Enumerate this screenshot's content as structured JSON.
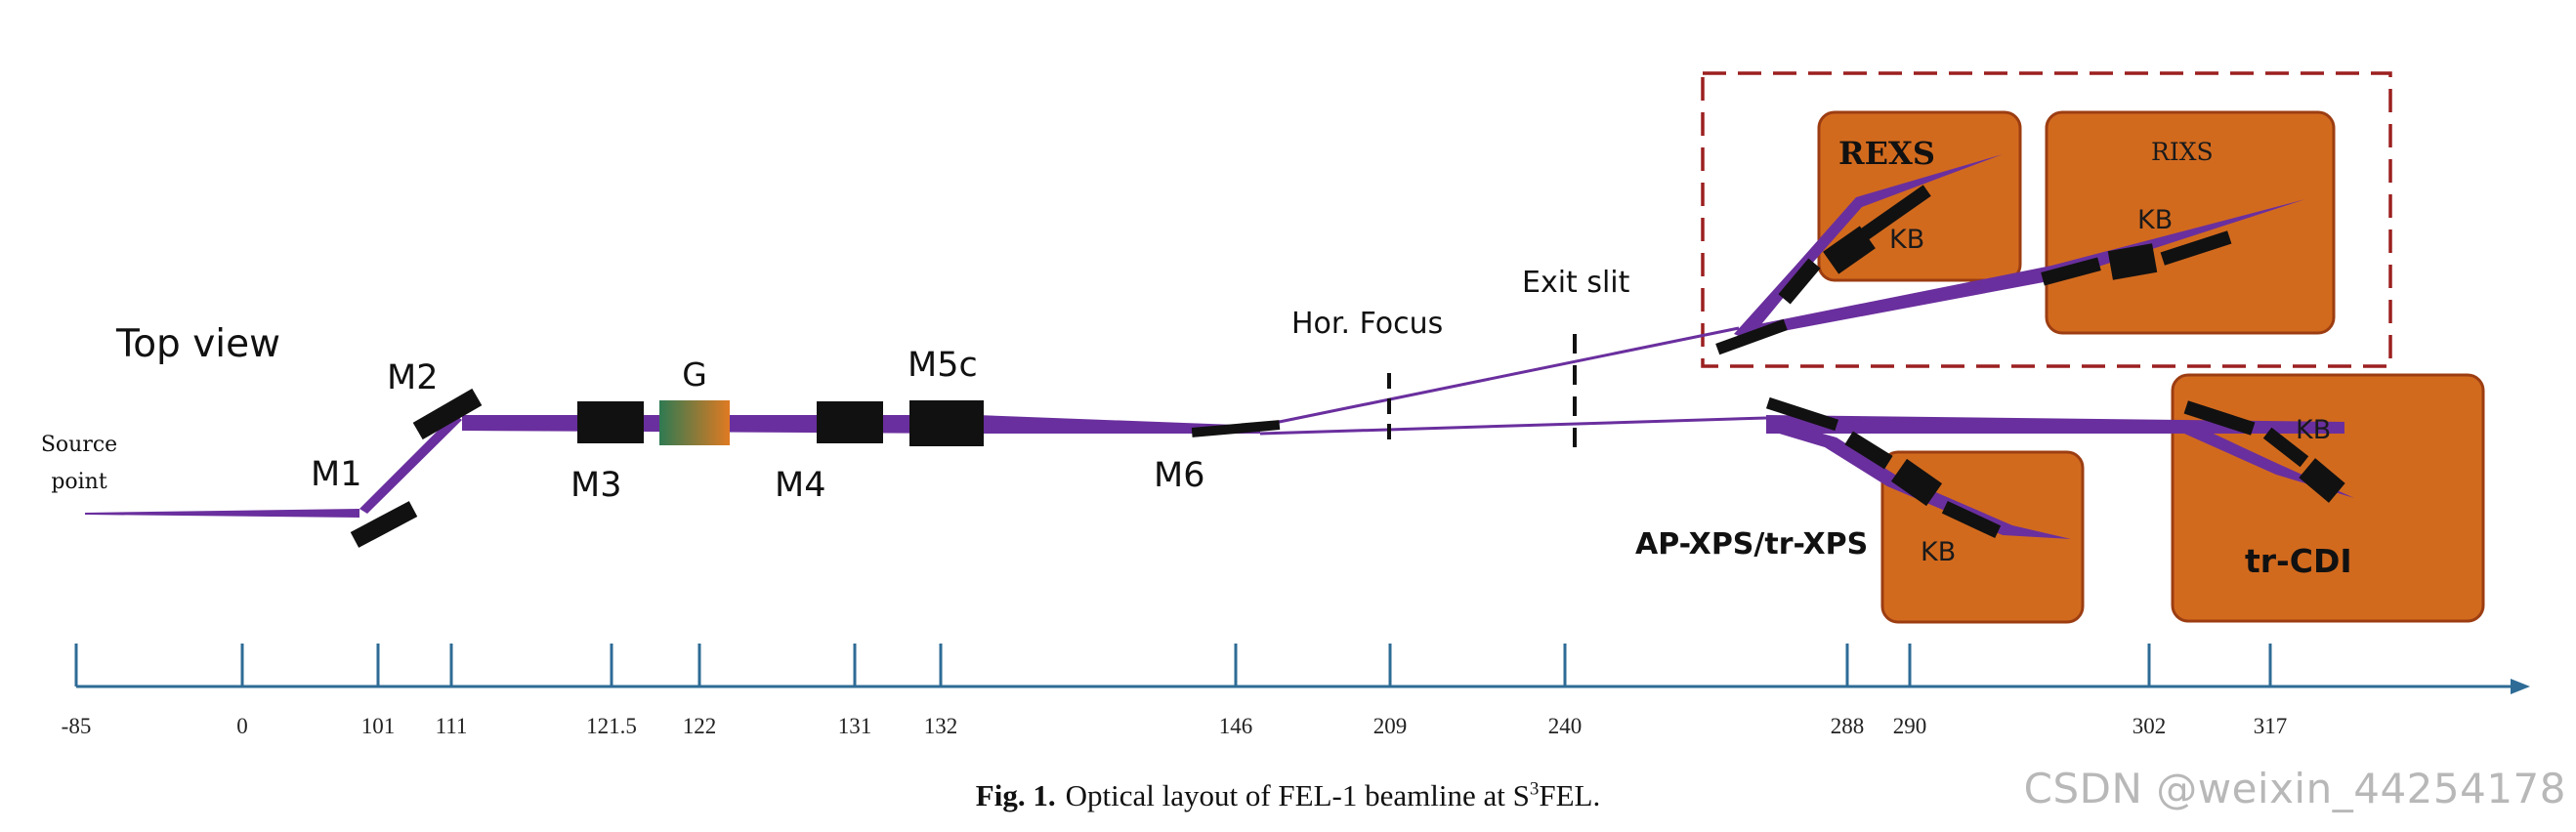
{
  "view_label": "Top view",
  "source_label": [
    "Source",
    "point"
  ],
  "components": {
    "m1": "M1",
    "m2": "M2",
    "m3": "M3",
    "g": "G",
    "m4": "M4",
    "m5c": "M5c",
    "m6": "M6",
    "hor_focus": "Hor. Focus",
    "exit_slit": "Exit slit"
  },
  "stations": {
    "rexs": "REXS",
    "rixs": "RIXS",
    "ap_xps": "AP-XPS/tr-XPS",
    "tr_cdi": "tr-CDI",
    "kb": "KB"
  },
  "axis_ticks": [
    "-85",
    "0",
    "101",
    "111",
    "121.5",
    "122",
    "131",
    "132",
    "146",
    "209",
    "240",
    "288",
    "290",
    "302",
    "317"
  ],
  "caption": {
    "label": "Fig. 1.",
    "text": "Optical layout of FEL-1 beamline at S",
    "superscript": "3",
    "suffix": "FEL."
  },
  "watermark": "CSDN @weixin_44254178",
  "colors": {
    "beam": "#6a2f9e",
    "station_fill": "#d26a1e",
    "station_stroke": "#9c3d12",
    "dashed_box": "#9c1f1f",
    "axis": "#2e6b96",
    "mirror": "#111111"
  }
}
